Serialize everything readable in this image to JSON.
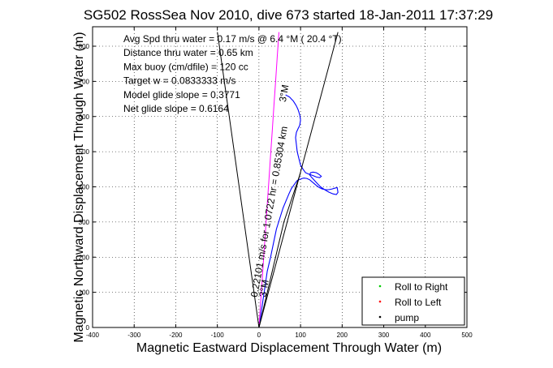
{
  "chart_data": {
    "type": "line",
    "title": "SG502 RossSea Nov 2010, dive 673 started 18-Jan-2011 17:37:29",
    "xlabel": "Magnetic Eastward Displacement Through Water (m)",
    "ylabel": "Magnetic Northward Displacement Through Water (m)",
    "xlim": [
      -400,
      500
    ],
    "ylim": [
      0,
      800
    ],
    "xticks": [
      -400,
      -300,
      -200,
      -100,
      0,
      100,
      200,
      300,
      400,
      500
    ],
    "yticks": [
      0,
      100,
      200,
      300,
      400,
      500,
      600,
      700,
      800
    ],
    "grid": true,
    "legend_placement": "bottom-right",
    "legend": [
      {
        "label": "Roll to Right",
        "color": "#00cc00"
      },
      {
        "label": "Roll to Left",
        "color": "#ff0000"
      },
      {
        "label": "pump",
        "color": "#000000"
      }
    ],
    "stats": [
      "Avg Spd thru water = 0.17 m/s @ 6.4 °M ( 20.4 °T)",
      "Distance thru water = 0.65 km",
      "Max buoy (cm/dfile) = 120 cc",
      "Target w = 0.0833333 m/s",
      "Model glide slope = 0.3771",
      "Net glide slope = 0.6164"
    ],
    "annotations": [
      {
        "text": "0.22101 m/s for 1.0722 hr = 0.85304 km",
        "x": -4,
        "y": 85
      },
      {
        "text": "3°M",
        "x": 16,
        "y": 85
      },
      {
        "text": "3°M",
        "x": 64,
        "y": 640
      }
    ],
    "series": [
      {
        "role": "track",
        "color": "#0000ff",
        "x": [
          0,
          5,
          10,
          15,
          20,
          28,
          35,
          42,
          50,
          58,
          65,
          72,
          78,
          84,
          88,
          92,
          96,
          100,
          104,
          108,
          115,
          122,
          130,
          138,
          145,
          152,
          160,
          168,
          176,
          182,
          188,
          190,
          186,
          178,
          168,
          158,
          148,
          140,
          132,
          126,
          122,
          124,
          130,
          138,
          144,
          150,
          146,
          138,
          130,
          120,
          112,
          106,
          100,
          96,
          92,
          90,
          88,
          90,
          94,
          98,
          100,
          98,
          94,
          90,
          86,
          82,
          78,
          74,
          70,
          66,
          64
        ],
        "y": [
          0,
          40,
          80,
          120,
          160,
          200,
          240,
          280,
          310,
          340,
          360,
          380,
          395,
          405,
          412,
          418,
          420,
          422,
          424,
          425,
          424,
          420,
          412,
          404,
          398,
          394,
          392,
          392,
          394,
          396,
          398,
          384,
          378,
          380,
          385,
          392,
          400,
          410,
          420,
          428,
          434,
          440,
          442,
          440,
          436,
          430,
          426,
          428,
          432,
          436,
          440,
          450,
          462,
          480,
          500,
          520,
          540,
          555,
          565,
          575,
          590,
          605,
          620,
          630,
          638,
          645,
          650,
          655,
          658,
          660,
          662
        ]
      },
      {
        "role": "track-overlay",
        "color": "#ff00ff",
        "x": [
          0,
          4,
          8,
          12,
          16,
          20,
          24,
          28,
          32,
          36,
          40,
          44,
          48
        ],
        "y": [
          0,
          70,
          140,
          210,
          280,
          350,
          420,
          490,
          560,
          630,
          700,
          770,
          840
        ]
      },
      {
        "role": "wedge-left",
        "color": "#000000",
        "x": [
          0,
          -100
        ],
        "y": [
          0,
          840
        ]
      },
      {
        "role": "wedge-right",
        "color": "#000000",
        "x": [
          0,
          190
        ],
        "y": [
          0,
          840
        ]
      },
      {
        "role": "heading-line",
        "color": "#000000",
        "x": [
          0,
          60,
          100
        ],
        "y": [
          0,
          300,
          440
        ]
      }
    ]
  }
}
